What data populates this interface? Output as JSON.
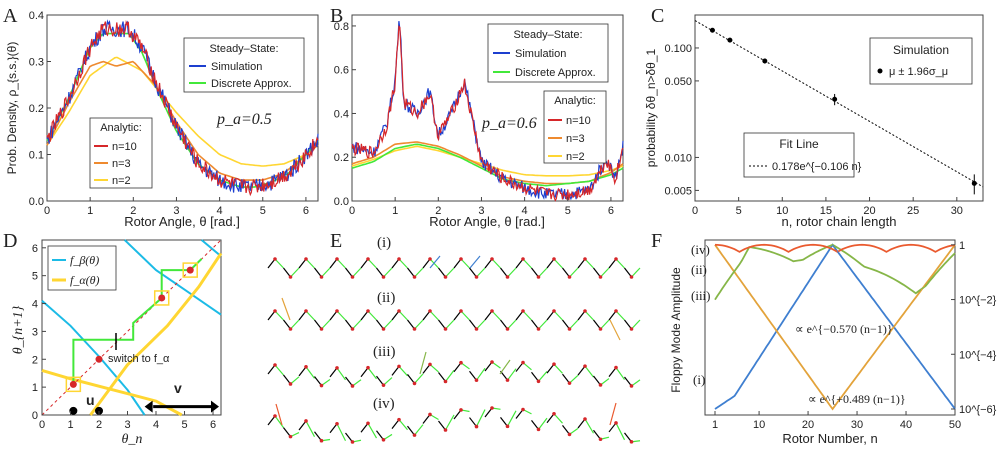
{
  "colors": {
    "red": "#d6272a",
    "orange": "#ee8a2f",
    "yellow": "#ffd632",
    "blue": "#1d3fcf",
    "green": "#42e83a",
    "cyan": "#1cbbe6",
    "rotorBlue": "#3f7fd0",
    "gold": "#e3a33b",
    "olive": "#86b648",
    "hot": "#ea5a2f"
  },
  "panels": {
    "A": {
      "letter": "A",
      "xlabel": "Rotor Angle, θ [rad.]",
      "ylabel": "Prob. Density, ρ_{s.s.}(θ)",
      "pa": "p_a=0.5",
      "legend1_title": "Steady–State:",
      "legend1_items": [
        "Simulation",
        "Discrete Approx."
      ],
      "legend2_title": "Analytic:",
      "legend2_items": [
        "n=10",
        "n=3",
        "n=2"
      ],
      "xticks": [
        "0",
        "1",
        "2",
        "3",
        "4",
        "5",
        "6"
      ],
      "yticks": [
        "0.0",
        "0.1",
        "0.2",
        "0.3",
        "0.4"
      ]
    },
    "B": {
      "letter": "B",
      "xlabel": "Rotor Angle, θ [rad.]",
      "pa": "p_a=0.6",
      "legend1_title": "Steady–State:",
      "legend1_items": [
        "Simulation",
        "Discrete Approx."
      ],
      "legend2_title": "Analytic:",
      "legend2_items": [
        "n=10",
        "n=3",
        "n=2"
      ],
      "xticks": [
        "0",
        "1",
        "2",
        "3",
        "4",
        "5",
        "6"
      ],
      "yticks": [
        "0.0",
        "0.2",
        "0.4",
        "0.6",
        "0.8"
      ]
    },
    "C": {
      "letter": "C",
      "xlabel": "n, rotor chain length",
      "ylabel": "probability δθ_n>δθ_1",
      "legend_sim_title": "Simulation",
      "legend_sim_item": "μ ± 1.96σ_μ",
      "legend_fit_title": "Fit Line",
      "legend_fit_item": "0.178e^{−0.106 n}",
      "xticks": [
        "0",
        "5",
        "10",
        "15",
        "20",
        "25",
        "30"
      ],
      "yticks": [
        "0.005",
        "0.010",
        "0.050",
        "0.100"
      ]
    },
    "D": {
      "letter": "D",
      "xlabel": "θ_n",
      "ylabel": "θ_{n+1}",
      "legend_items": [
        "f_β(θ)",
        "f_α(θ)"
      ],
      "annot_switch": "switch to f_α",
      "label_u": "u",
      "label_v": "v",
      "ticks": [
        "0",
        "1",
        "2",
        "3",
        "4",
        "5",
        "6"
      ]
    },
    "E": {
      "letter": "E",
      "rows": [
        "(i)",
        "(ii)",
        "(iii)",
        "(iv)"
      ]
    },
    "F": {
      "letter": "F",
      "xlabel": "Rotor Number, n",
      "ylabel": "Floppy Mode Amplitude",
      "labels": [
        "(iv)",
        "(ii)",
        "(iii)",
        "(i)"
      ],
      "annot_decay": "∝ e^{−0.570 (n−1)}",
      "annot_grow": "∝ e^{+0.489 (n−1)}",
      "xticks": [
        "1",
        "10",
        "20",
        "30",
        "40",
        "50"
      ],
      "yticks": [
        "1",
        "10^{−2}",
        "10^{−4}",
        "10^{−6}"
      ]
    }
  },
  "chart_data": [
    {
      "panel": "A",
      "type": "line",
      "xlim": [
        0,
        6.28
      ],
      "ylim": [
        0,
        0.4
      ],
      "series": [
        {
          "name": "Simulation",
          "x": [
            0,
            0.5,
            1.0,
            1.3,
            1.6,
            1.9,
            2.2,
            2.6,
            3.0,
            3.5,
            4.0,
            4.5,
            4.8,
            5.2,
            5.6,
            6.0,
            6.28
          ],
          "y": [
            0.13,
            0.22,
            0.33,
            0.37,
            0.37,
            0.37,
            0.33,
            0.24,
            0.16,
            0.08,
            0.045,
            0.03,
            0.03,
            0.04,
            0.06,
            0.1,
            0.13
          ]
        },
        {
          "name": "Discrete Approx.",
          "x": [
            0,
            0.5,
            1.0,
            1.3,
            1.6,
            1.9,
            2.2,
            2.6,
            3.0,
            3.5,
            4.0,
            4.5,
            4.8,
            5.2,
            5.6,
            6.0,
            6.28
          ],
          "y": [
            0.13,
            0.22,
            0.33,
            0.36,
            0.36,
            0.36,
            0.32,
            0.23,
            0.15,
            0.08,
            0.045,
            0.03,
            0.03,
            0.04,
            0.06,
            0.1,
            0.13
          ]
        },
        {
          "name": "n=10",
          "x": [
            0,
            0.5,
            1.0,
            1.3,
            1.6,
            1.9,
            2.2,
            2.6,
            3.0,
            3.5,
            4.0,
            4.5,
            4.8,
            5.2,
            5.6,
            6.0,
            6.28
          ],
          "y": [
            0.13,
            0.22,
            0.33,
            0.37,
            0.37,
            0.37,
            0.33,
            0.24,
            0.16,
            0.08,
            0.045,
            0.03,
            0.03,
            0.04,
            0.06,
            0.1,
            0.13
          ]
        },
        {
          "name": "n=3",
          "x": [
            0,
            0.5,
            1.0,
            1.3,
            1.6,
            2.0,
            2.5,
            3.0,
            3.5,
            4.0,
            4.5,
            5.0,
            5.5,
            6.0,
            6.28
          ],
          "y": [
            0.12,
            0.21,
            0.29,
            0.3,
            0.29,
            0.3,
            0.25,
            0.17,
            0.1,
            0.06,
            0.045,
            0.045,
            0.06,
            0.1,
            0.12
          ]
        },
        {
          "name": "n=2",
          "x": [
            0,
            0.5,
            1.0,
            1.6,
            2.2,
            3.0,
            3.5,
            4.0,
            4.5,
            5.0,
            5.5,
            6.0,
            6.28
          ],
          "y": [
            0.12,
            0.19,
            0.27,
            0.31,
            0.28,
            0.19,
            0.14,
            0.1,
            0.08,
            0.075,
            0.08,
            0.1,
            0.12
          ]
        }
      ]
    },
    {
      "panel": "B",
      "type": "line",
      "xlim": [
        0,
        6.28
      ],
      "ylim": [
        0,
        0.85
      ],
      "series": [
        {
          "name": "Simulation",
          "x": [
            0,
            0.5,
            0.8,
            1.0,
            1.1,
            1.2,
            1.5,
            1.8,
            2.0,
            2.3,
            2.6,
            3.0,
            3.5,
            4.0,
            4.5,
            5.0,
            5.5,
            5.9,
            6.1,
            6.28
          ],
          "y": [
            0.25,
            0.22,
            0.35,
            0.55,
            0.85,
            0.45,
            0.4,
            0.5,
            0.3,
            0.4,
            0.55,
            0.18,
            0.1,
            0.06,
            0.03,
            0.03,
            0.05,
            0.2,
            0.1,
            0.25
          ]
        },
        {
          "name": "Discrete Approx.",
          "x": [
            0,
            0.5,
            1.0,
            1.5,
            2.0,
            2.5,
            3.0,
            3.5,
            4.0,
            4.5,
            5.0,
            5.5,
            6.0,
            6.28
          ],
          "y": [
            0.15,
            0.18,
            0.24,
            0.26,
            0.24,
            0.2,
            0.15,
            0.1,
            0.08,
            0.07,
            0.08,
            0.09,
            0.12,
            0.15
          ]
        },
        {
          "name": "n=10",
          "x": [
            0,
            0.5,
            0.8,
            1.0,
            1.1,
            1.2,
            1.5,
            1.8,
            2.0,
            2.3,
            2.6,
            3.0,
            3.5,
            4.0,
            4.5,
            5.0,
            5.5,
            5.9,
            6.1,
            6.28
          ],
          "y": [
            0.24,
            0.22,
            0.34,
            0.54,
            0.84,
            0.45,
            0.4,
            0.49,
            0.3,
            0.4,
            0.54,
            0.18,
            0.1,
            0.06,
            0.03,
            0.03,
            0.05,
            0.19,
            0.1,
            0.24
          ]
        },
        {
          "name": "n=3",
          "x": [
            0,
            0.5,
            1.0,
            1.5,
            2.0,
            2.5,
            3.0,
            3.5,
            4.0,
            4.5,
            5.0,
            5.5,
            6.0,
            6.28
          ],
          "y": [
            0.17,
            0.2,
            0.26,
            0.27,
            0.25,
            0.21,
            0.16,
            0.11,
            0.09,
            0.08,
            0.08,
            0.09,
            0.13,
            0.17
          ]
        },
        {
          "name": "n=2",
          "x": [
            0,
            0.5,
            1.0,
            1.5,
            2.0,
            2.5,
            3.0,
            3.5,
            4.0,
            4.5,
            5.0,
            5.5,
            6.0,
            6.28
          ],
          "y": [
            0.16,
            0.19,
            0.23,
            0.25,
            0.23,
            0.2,
            0.17,
            0.14,
            0.12,
            0.115,
            0.115,
            0.12,
            0.14,
            0.16
          ]
        }
      ]
    },
    {
      "panel": "C",
      "type": "scatter",
      "xlim": [
        0,
        33
      ],
      "ylim": [
        0.004,
        0.2
      ],
      "yscale": "log",
      "series": [
        {
          "name": "μ ± 1.96σ_μ",
          "x": [
            2,
            4,
            8,
            16,
            32
          ],
          "y": [
            0.145,
            0.118,
            0.076,
            0.034,
            0.0058
          ],
          "err": [
            0.006,
            0.005,
            0.004,
            0.004,
            0.0012
          ]
        },
        {
          "name": "0.178e^{−0.106 n}",
          "fit": {
            "a": 0.178,
            "b": -0.106
          },
          "x": [
            0,
            33
          ]
        }
      ]
    },
    {
      "panel": "D",
      "type": "line",
      "xlim": [
        0,
        6.28
      ],
      "ylim": [
        0,
        6.28
      ],
      "points": [
        [
          1.1,
          1.1
        ],
        [
          2.0,
          2.0
        ],
        [
          4.2,
          4.2
        ],
        [
          5.2,
          5.2
        ]
      ],
      "markers": [
        {
          "label": "u",
          "x": [
            1.1,
            2.0
          ]
        },
        {
          "label": "v"
        }
      ]
    },
    {
      "panel": "F",
      "type": "line",
      "xlim": [
        1,
        50
      ],
      "yscale": "log",
      "ylim": [
        1e-06,
        1
      ],
      "series": [
        {
          "name": "(i)",
          "x": [
            1,
            5,
            25,
            50
          ],
          "y": [
            1e-06,
            3e-06,
            1,
            1e-06
          ]
        },
        {
          "name": "(ii)",
          "x": [
            1,
            25,
            50
          ],
          "y": [
            1,
            1e-06,
            1
          ]
        },
        {
          "name": "(iii)",
          "x": [
            1,
            8,
            17,
            25,
            42,
            50
          ],
          "y": [
            0.01,
            1,
            0.3,
            1,
            0.02,
            0.5
          ]
        },
        {
          "name": "(iv)",
          "x": [
            1,
            10,
            20,
            30,
            40,
            50
          ],
          "y": [
            1,
            0.3,
            1,
            0.3,
            1,
            0.3
          ]
        }
      ]
    }
  ]
}
